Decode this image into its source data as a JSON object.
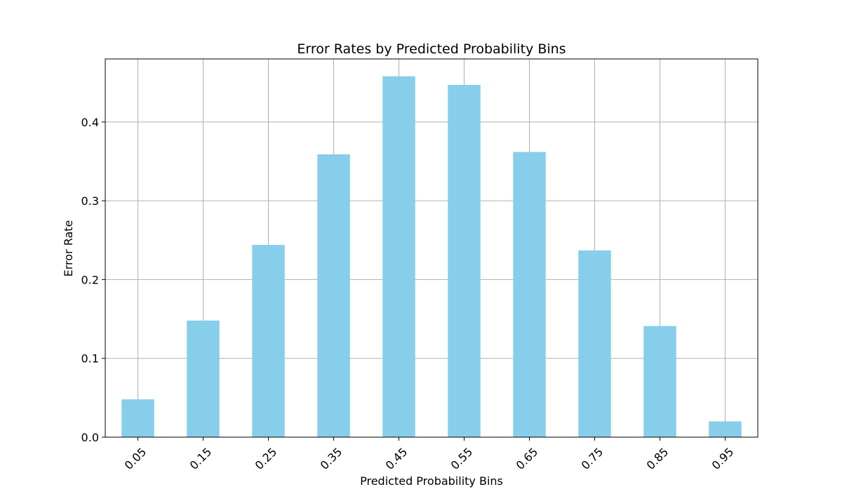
{
  "chart_data": {
    "type": "bar",
    "title": "Error Rates by Predicted Probability Bins",
    "xlabel": "Predicted Probability Bins",
    "ylabel": "Error Rate",
    "categories": [
      "0.05",
      "0.15",
      "0.25",
      "0.35",
      "0.45",
      "0.55",
      "0.65",
      "0.75",
      "0.85",
      "0.95"
    ],
    "values": [
      0.048,
      0.148,
      0.244,
      0.359,
      0.458,
      0.447,
      0.362,
      0.237,
      0.141,
      0.02
    ],
    "ylim": [
      0,
      0.48
    ],
    "yticks": [
      0.0,
      0.1,
      0.2,
      0.3,
      0.4
    ],
    "ytick_labels": [
      "0.0",
      "0.1",
      "0.2",
      "0.3",
      "0.4"
    ],
    "grid": true,
    "bar_color": "#87ceeb",
    "grid_color": "#b0b0b0",
    "xtick_rotation": -45
  }
}
